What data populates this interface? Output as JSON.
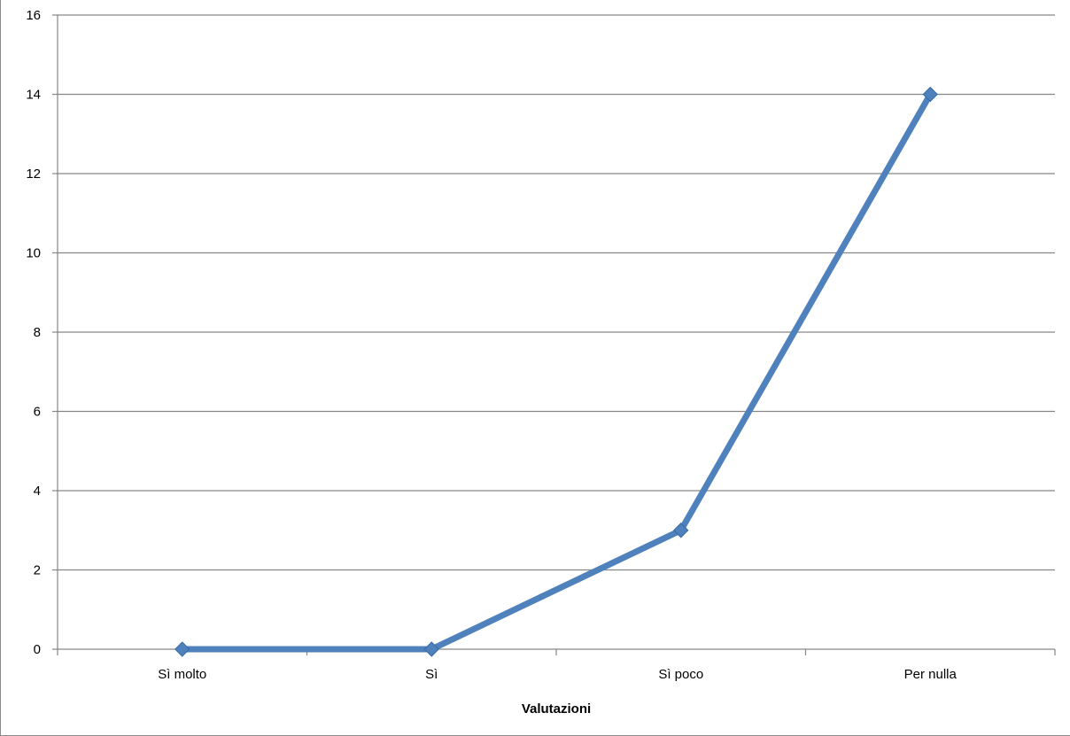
{
  "chart_data": {
    "type": "line",
    "title": "",
    "xlabel": "Valutazioni",
    "ylabel": "",
    "categories": [
      "Sì molto",
      "Sì",
      "Sì poco",
      "Per nulla"
    ],
    "series": [
      {
        "values": [
          0,
          0,
          3,
          14
        ],
        "color": "#4F81BD",
        "marker": "diamond"
      }
    ],
    "ylim": [
      0,
      16
    ],
    "yticks": [
      "0",
      "2",
      "4",
      "6",
      "8",
      "10",
      "12",
      "14",
      "16"
    ],
    "grid": true,
    "legend": "none"
  }
}
